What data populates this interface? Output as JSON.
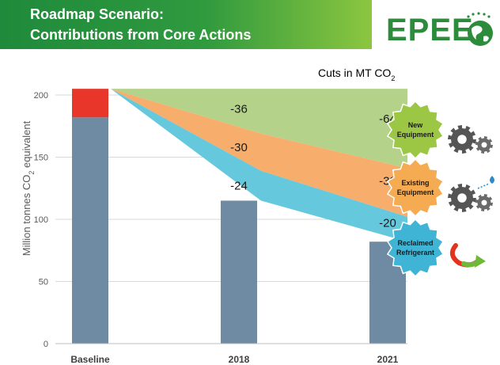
{
  "header": {
    "title_line1": "Roadmap Scenario:",
    "title_line2": "Contributions from Core Actions",
    "logo_text": "EPEE"
  },
  "colors": {
    "bar": "#6e8ba3",
    "baseline_top": "#e8362a",
    "new_equipment_band": "#b4d28a",
    "existing_equipment_band": "#f7ad6b",
    "reclaimed_refrigerant_band": "#66c8dc",
    "new_equipment_badge": "#9cc744",
    "existing_equipment_badge": "#f5ab52",
    "reclaimed_refrigerant_badge": "#3fb4d4",
    "axis_text": "#595959",
    "grid": "#d9d9d9"
  },
  "chart_data": {
    "type": "bar",
    "title": "Cuts in MT CO2",
    "ylabel": "Million tonnes CO2 equivalent",
    "ylim": [
      0,
      200
    ],
    "yticks": [
      0,
      50,
      100,
      150,
      200
    ],
    "categories": [
      "Baseline",
      "2018",
      "2021"
    ],
    "bars": [
      {
        "category": "Baseline",
        "value": 182,
        "top": 205
      },
      {
        "category": "2018",
        "value": 115
      },
      {
        "category": "2021",
        "value": 82
      }
    ],
    "baseline_total": 205,
    "series": [
      {
        "name": "New Equipment",
        "cuts": [
          0,
          36,
          64
        ],
        "bottom": [
          205,
          169,
          141
        ]
      },
      {
        "name": "Existing Equipment",
        "cuts": [
          0,
          30,
          39
        ],
        "bottom": [
          205,
          139,
          102
        ]
      },
      {
        "name": "Reclaimed Refrigerant",
        "cuts": [
          0,
          24,
          20
        ],
        "bottom": [
          205,
          115,
          82
        ]
      }
    ],
    "band_labels": [
      {
        "text": "-36",
        "x": "2018",
        "y": 189
      },
      {
        "text": "-64",
        "x": "2021",
        "y": 181
      },
      {
        "text": "-30",
        "x": "2018",
        "y": 158
      },
      {
        "text": "-39",
        "x": "2021",
        "y": 131
      },
      {
        "text": "-24",
        "x": "2018",
        "y": 127
      },
      {
        "text": "-20",
        "x": "2021",
        "y": 97
      }
    ]
  },
  "badges": [
    {
      "line1": "New",
      "line2": "Equipment",
      "icon": "gears-icon"
    },
    {
      "line1": "Existing",
      "line2": "Equipment",
      "icon": "gears-drop-icon"
    },
    {
      "line1": "Reclaimed",
      "line2": "Refrigerant",
      "icon": "recycle-arrow-icon"
    }
  ]
}
